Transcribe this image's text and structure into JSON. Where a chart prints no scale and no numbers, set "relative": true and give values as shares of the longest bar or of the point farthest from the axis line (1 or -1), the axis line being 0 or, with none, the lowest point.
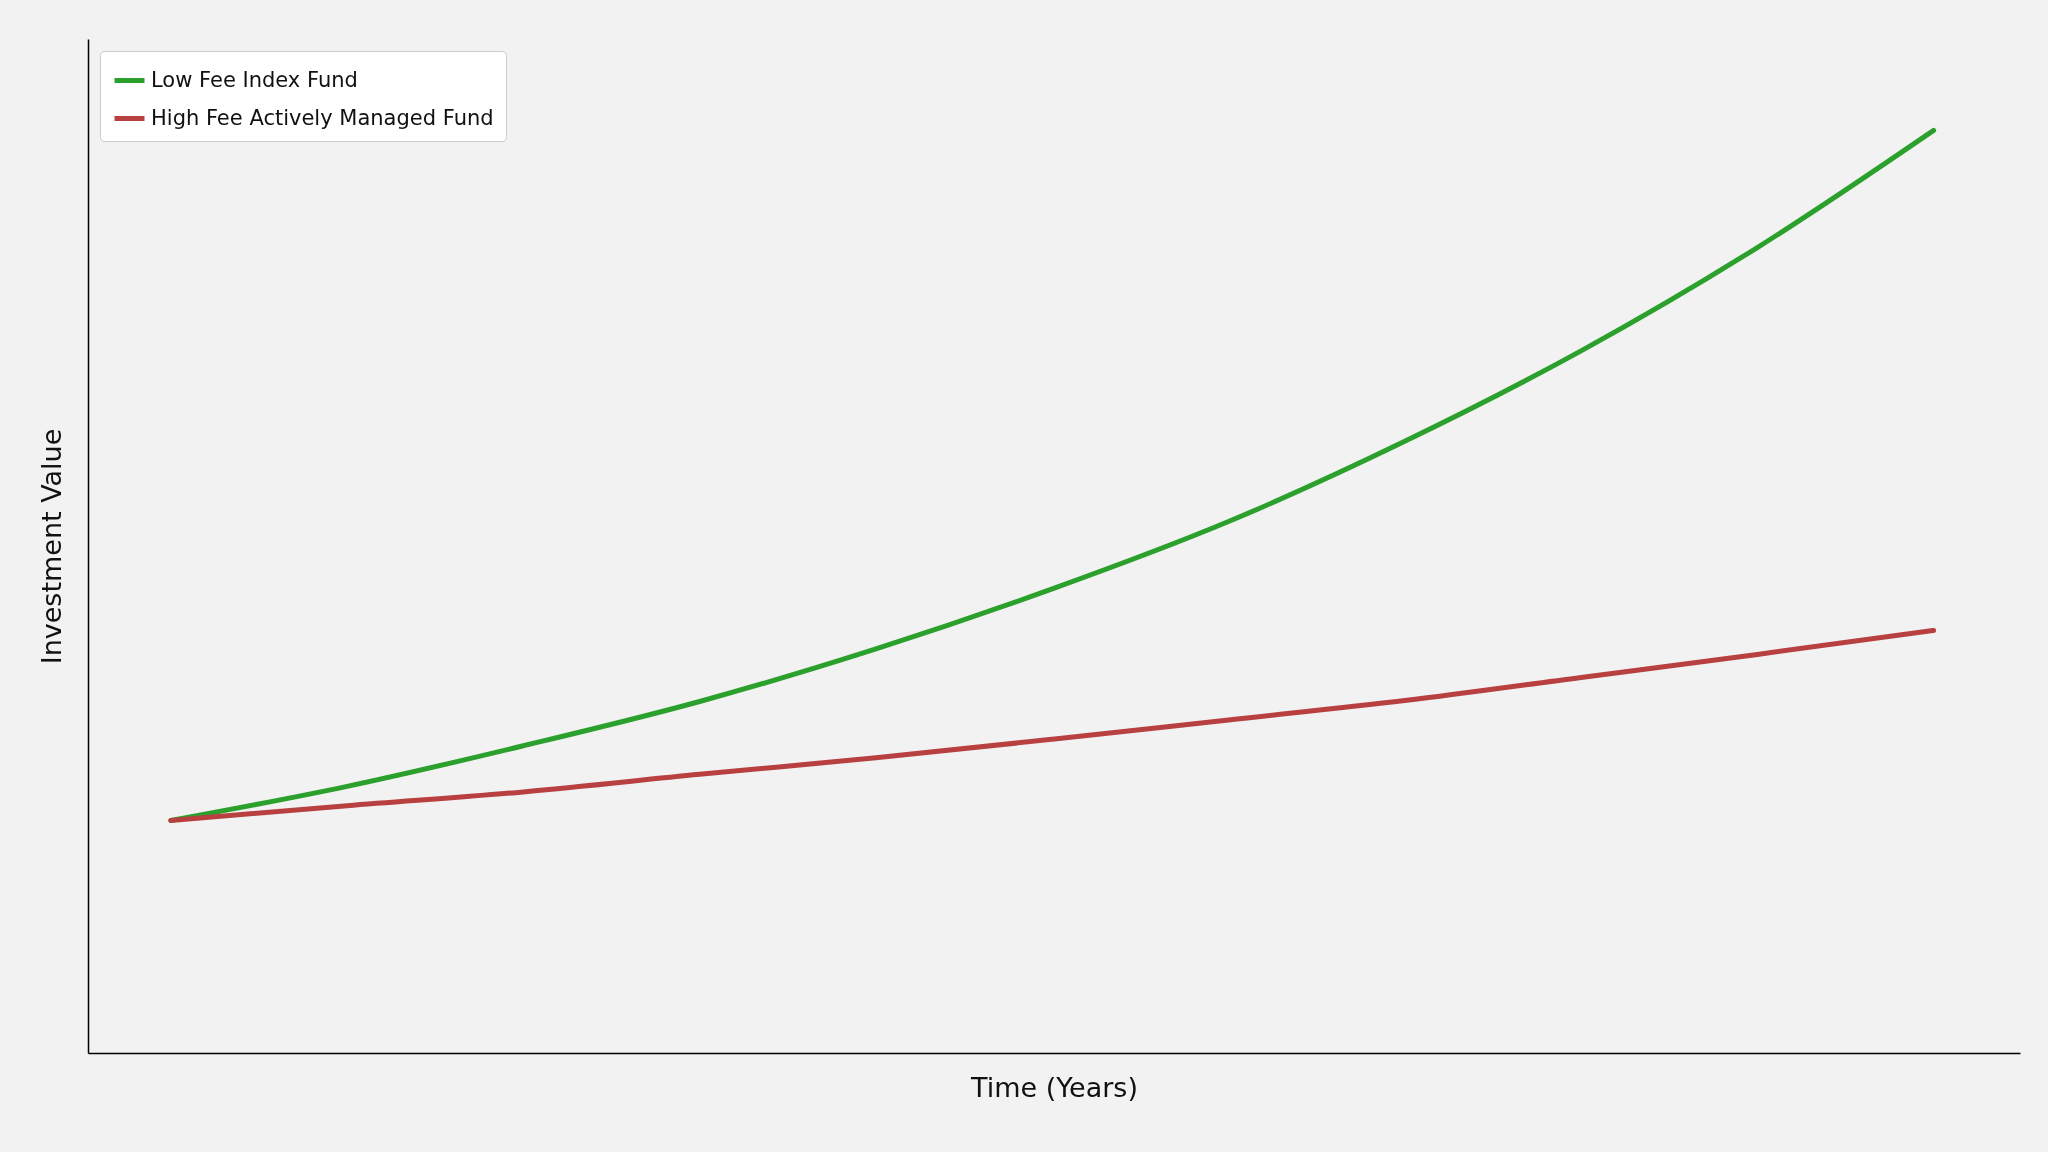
{
  "chart_data": {
    "type": "line",
    "xlabel": "Time (Years)",
    "ylabel": "Investment Value",
    "relative": true,
    "legend": "top left",
    "categories": [
      null,
      null,
      null,
      null,
      null,
      null,
      null,
      null,
      null,
      null,
      null
    ],
    "series": [
      {
        "name": "Low Fee Index Fund",
        "color": "#2ca02c",
        "values": [
          0.252,
          0.289,
          0.333,
          0.381,
          0.438,
          0.503,
          0.576,
          0.663,
          0.761,
          0.873,
          1
        ]
      },
      {
        "name": "High Fee Actively Managed Fund",
        "color": "#b94040",
        "values": [
          0.252,
          0.268,
          0.283,
          0.302,
          0.32,
          0.34,
          0.361,
          0.382,
          0.407,
          0.432,
          0.458
        ]
      }
    ]
  }
}
